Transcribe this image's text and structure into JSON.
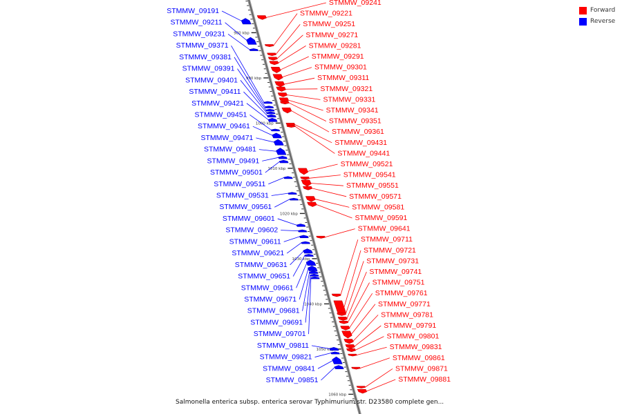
{
  "legend": {
    "forward_label": "Forward",
    "reverse_label": "Reverse",
    "forward_color": "#ff0000",
    "reverse_color": "#0000ff"
  },
  "caption": "Salmonella enterica subsp. enterica serovar Typhimurium str. D23580 complete gen...",
  "scale_ticks": [
    {
      "kb": 980,
      "label": "980 kbp"
    },
    {
      "kb": 990,
      "label": "990 kbp"
    },
    {
      "kb": 1000,
      "label": "1000 kbp"
    },
    {
      "kb": 1010,
      "label": "1010 kbp"
    },
    {
      "kb": 1020,
      "label": "1020 kbp"
    },
    {
      "kb": 1030,
      "label": "1030 kbp"
    },
    {
      "kb": 1040,
      "label": "1040 kbp"
    },
    {
      "kb": 1050,
      "label": "1050 kbp"
    },
    {
      "kb": 1060,
      "label": "1060 kbp"
    }
  ],
  "genes_reverse": [
    {
      "name": "STMMW_09191",
      "kb": 976.8,
      "len": 1.3
    },
    {
      "name": "STMMW_09211",
      "kb": 981.0,
      "len": 1.6
    },
    {
      "name": "STMMW_09231",
      "kb": 983.5,
      "len": 0.5
    },
    {
      "name": "STMMW_09371",
      "kb": 995.2,
      "len": 0.3
    },
    {
      "name": "STMMW_09381",
      "kb": 996.2,
      "len": 0.3
    },
    {
      "name": "STMMW_09391",
      "kb": 996.9,
      "len": 0.4
    },
    {
      "name": "STMMW_09401",
      "kb": 997.5,
      "len": 0.4
    },
    {
      "name": "STMMW_09411",
      "kb": 998.1,
      "len": 0.6
    },
    {
      "name": "STMMW_09421",
      "kb": 998.9,
      "len": 0.8
    },
    {
      "name": "STMMW_09451",
      "kb": 1001.3,
      "len": 0.3
    },
    {
      "name": "STMMW_09461",
      "kb": 1002.2,
      "len": 1.1
    },
    {
      "name": "STMMW_09471",
      "kb": 1003.6,
      "len": 1.3
    },
    {
      "name": "STMMW_09481",
      "kb": 1005.5,
      "len": 1.5
    },
    {
      "name": "STMMW_09491",
      "kb": 1007.3,
      "len": 0.6
    },
    {
      "name": "STMMW_09501",
      "kb": 1008.2,
      "len": 0.6
    },
    {
      "name": "STMMW_09511",
      "kb": 1011.8,
      "len": 0.5
    },
    {
      "name": "STMMW_09531",
      "kb": 1015.3,
      "len": 0.3
    },
    {
      "name": "STMMW_09561",
      "kb": 1016.6,
      "len": 0.3
    },
    {
      "name": "STMMW_09601",
      "kb": 1022.3,
      "len": 0.6
    },
    {
      "name": "STMMW_09602",
      "kb": 1023.6,
      "len": 0.5
    },
    {
      "name": "STMMW_09611",
      "kb": 1024.8,
      "len": 0.6
    },
    {
      "name": "STMMW_09621",
      "kb": 1026.2,
      "len": 0.5
    },
    {
      "name": "STMMW_09631",
      "kb": 1027.8,
      "len": 1.0
    },
    {
      "name": "STMMW_09651",
      "kb": 1029.0,
      "len": 0.5
    },
    {
      "name": "STMMW_09661",
      "kb": 1030.3,
      "len": 1.2
    },
    {
      "name": "STMMW_09671",
      "kb": 1031.6,
      "len": 1.1
    },
    {
      "name": "STMMW_09681",
      "kb": 1032.7,
      "len": 0.6
    },
    {
      "name": "STMMW_09691",
      "kb": 1033.4,
      "len": 0.5
    },
    {
      "name": "STMMW_09701",
      "kb": 1034.0,
      "len": 0.4
    },
    {
      "name": "STMMW_09811",
      "kb": 1049.6,
      "len": 0.7
    },
    {
      "name": "STMMW_09821",
      "kb": 1050.6,
      "len": 0.5
    },
    {
      "name": "STMMW_09841",
      "kb": 1051.7,
      "len": 1.6
    },
    {
      "name": "STMMW_09851",
      "kb": 1053.6,
      "len": 0.8
    }
  ],
  "genes_forward": [
    {
      "name": "STMMW_09241",
      "kb": 976.2,
      "len": 0.9
    },
    {
      "name": "STMMW_09221",
      "kb": 982.6,
      "len": 0.5
    },
    {
      "name": "STMMW_09251",
      "kb": 984.5,
      "len": 0.6
    },
    {
      "name": "STMMW_09271",
      "kb": 985.4,
      "len": 0.7
    },
    {
      "name": "STMMW_09281",
      "kb": 986.3,
      "len": 0.8
    },
    {
      "name": "STMMW_09291",
      "kb": 987.6,
      "len": 1.3
    },
    {
      "name": "STMMW_09301",
      "kb": 989.2,
      "len": 1.3
    },
    {
      "name": "STMMW_09311",
      "kb": 990.8,
      "len": 1.2
    },
    {
      "name": "STMMW_09321",
      "kb": 992.0,
      "len": 1.0
    },
    {
      "name": "STMMW_09331",
      "kb": 993.3,
      "len": 0.9
    },
    {
      "name": "STMMW_09341",
      "kb": 994.4,
      "len": 1.0
    },
    {
      "name": "STMMW_09351",
      "kb": 995.2,
      "len": 0.6
    },
    {
      "name": "STMMW_09361",
      "kb": 996.6,
      "len": 1.2
    },
    {
      "name": "STMMW_09431",
      "kb": 1000.0,
      "len": 0.6
    },
    {
      "name": "STMMW_09441",
      "kb": 1000.5,
      "len": 0.3
    },
    {
      "name": "STMMW_09521",
      "kb": 1010.0,
      "len": 1.4
    },
    {
      "name": "STMMW_09541",
      "kb": 1011.9,
      "len": 0.6
    },
    {
      "name": "STMMW_09551",
      "kb": 1012.6,
      "len": 1.4
    },
    {
      "name": "STMMW_09571",
      "kb": 1014.0,
      "len": 0.8
    },
    {
      "name": "STMMW_09581",
      "kb": 1016.2,
      "len": 1.2
    },
    {
      "name": "STMMW_09591",
      "kb": 1017.5,
      "len": 1.0
    },
    {
      "name": "STMMW_09641",
      "kb": 1025.0,
      "len": 0.5
    },
    {
      "name": "STMMW_09711",
      "kb": 1037.8,
      "len": 0.6
    },
    {
      "name": "STMMW_09721",
      "kb": 1039.3,
      "len": 3.2
    },
    {
      "name": "STMMW_09731",
      "kb": 1042.0,
      "len": 0.6
    },
    {
      "name": "STMMW_09741",
      "kb": 1042.9,
      "len": 0.8
    },
    {
      "name": "STMMW_09751",
      "kb": 1043.8,
      "len": 0.6
    },
    {
      "name": "STMMW_09761",
      "kb": 1044.9,
      "len": 0.9
    },
    {
      "name": "STMMW_09771",
      "kb": 1046.0,
      "len": 1.6
    },
    {
      "name": "STMMW_09781",
      "kb": 1047.8,
      "len": 1.0
    },
    {
      "name": "STMMW_09791",
      "kb": 1049.0,
      "len": 0.9
    },
    {
      "name": "STMMW_09801",
      "kb": 1049.9,
      "len": 0.7
    },
    {
      "name": "STMMW_09831",
      "kb": 1051.1,
      "len": 0.4
    },
    {
      "name": "STMMW_09861",
      "kb": 1054.0,
      "len": 0.3
    },
    {
      "name": "STMMW_09871",
      "kb": 1058.2,
      "len": 0.4
    },
    {
      "name": "STMMW_09881",
      "kb": 1058.9,
      "len": 0.9
    }
  ]
}
